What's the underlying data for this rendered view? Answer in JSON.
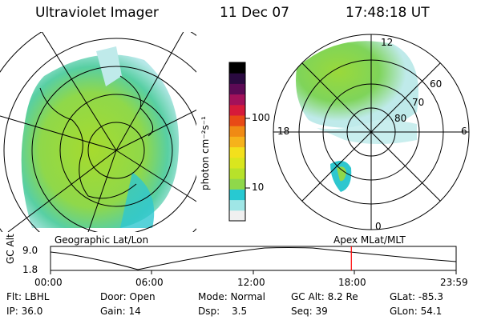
{
  "header": {
    "instrument": "Ultraviolet Imager",
    "date": "11 Dec 07",
    "time": "17:48:18 UT"
  },
  "colorbar": {
    "unit_label": "photon cm⁻²s⁻¹",
    "ticks": [
      "100",
      "10"
    ],
    "colors": [
      "#f0f0f0",
      "#9fe6e6",
      "#27c9d2",
      "#8fd84a",
      "#b7e22a",
      "#d9e61e",
      "#f3e01c",
      "#f6b21b",
      "#f08a14",
      "#e84a16",
      "#d61a3a",
      "#a3115a",
      "#5c0a55",
      "#2a0a40",
      "#000000"
    ]
  },
  "maps": {
    "geographic_label": "Geographic Lat/Lon",
    "apex_label": "Apex  MLat/MLT",
    "apex_lat_labels": [
      "60",
      "70",
      "80"
    ],
    "apex_mlt_labels": [
      "12",
      "18",
      "6",
      "0"
    ]
  },
  "timeline": {
    "y_axis_label": "GC Alt",
    "y_ticks": [
      "9.0",
      "1.8"
    ],
    "x_ticks": [
      "00:00",
      "06:00",
      "12:00",
      "18:00",
      "23:59"
    ],
    "current_time_hours": 17.8,
    "marker_color": "#ff0000"
  },
  "footer": {
    "flt": "Flt: LBHL",
    "ip": "IP: 36.0",
    "door": "Door: Open",
    "gain": "Gain: 14",
    "mode": "Mode: Normal",
    "dsp_label": "Dsp:",
    "dsp_value": "3.5",
    "gc_alt": "GC Alt: 8.2 Re",
    "seq": "Seq: 39",
    "glat": "GLat: -85.3",
    "glon": "GLon:  54.1"
  }
}
